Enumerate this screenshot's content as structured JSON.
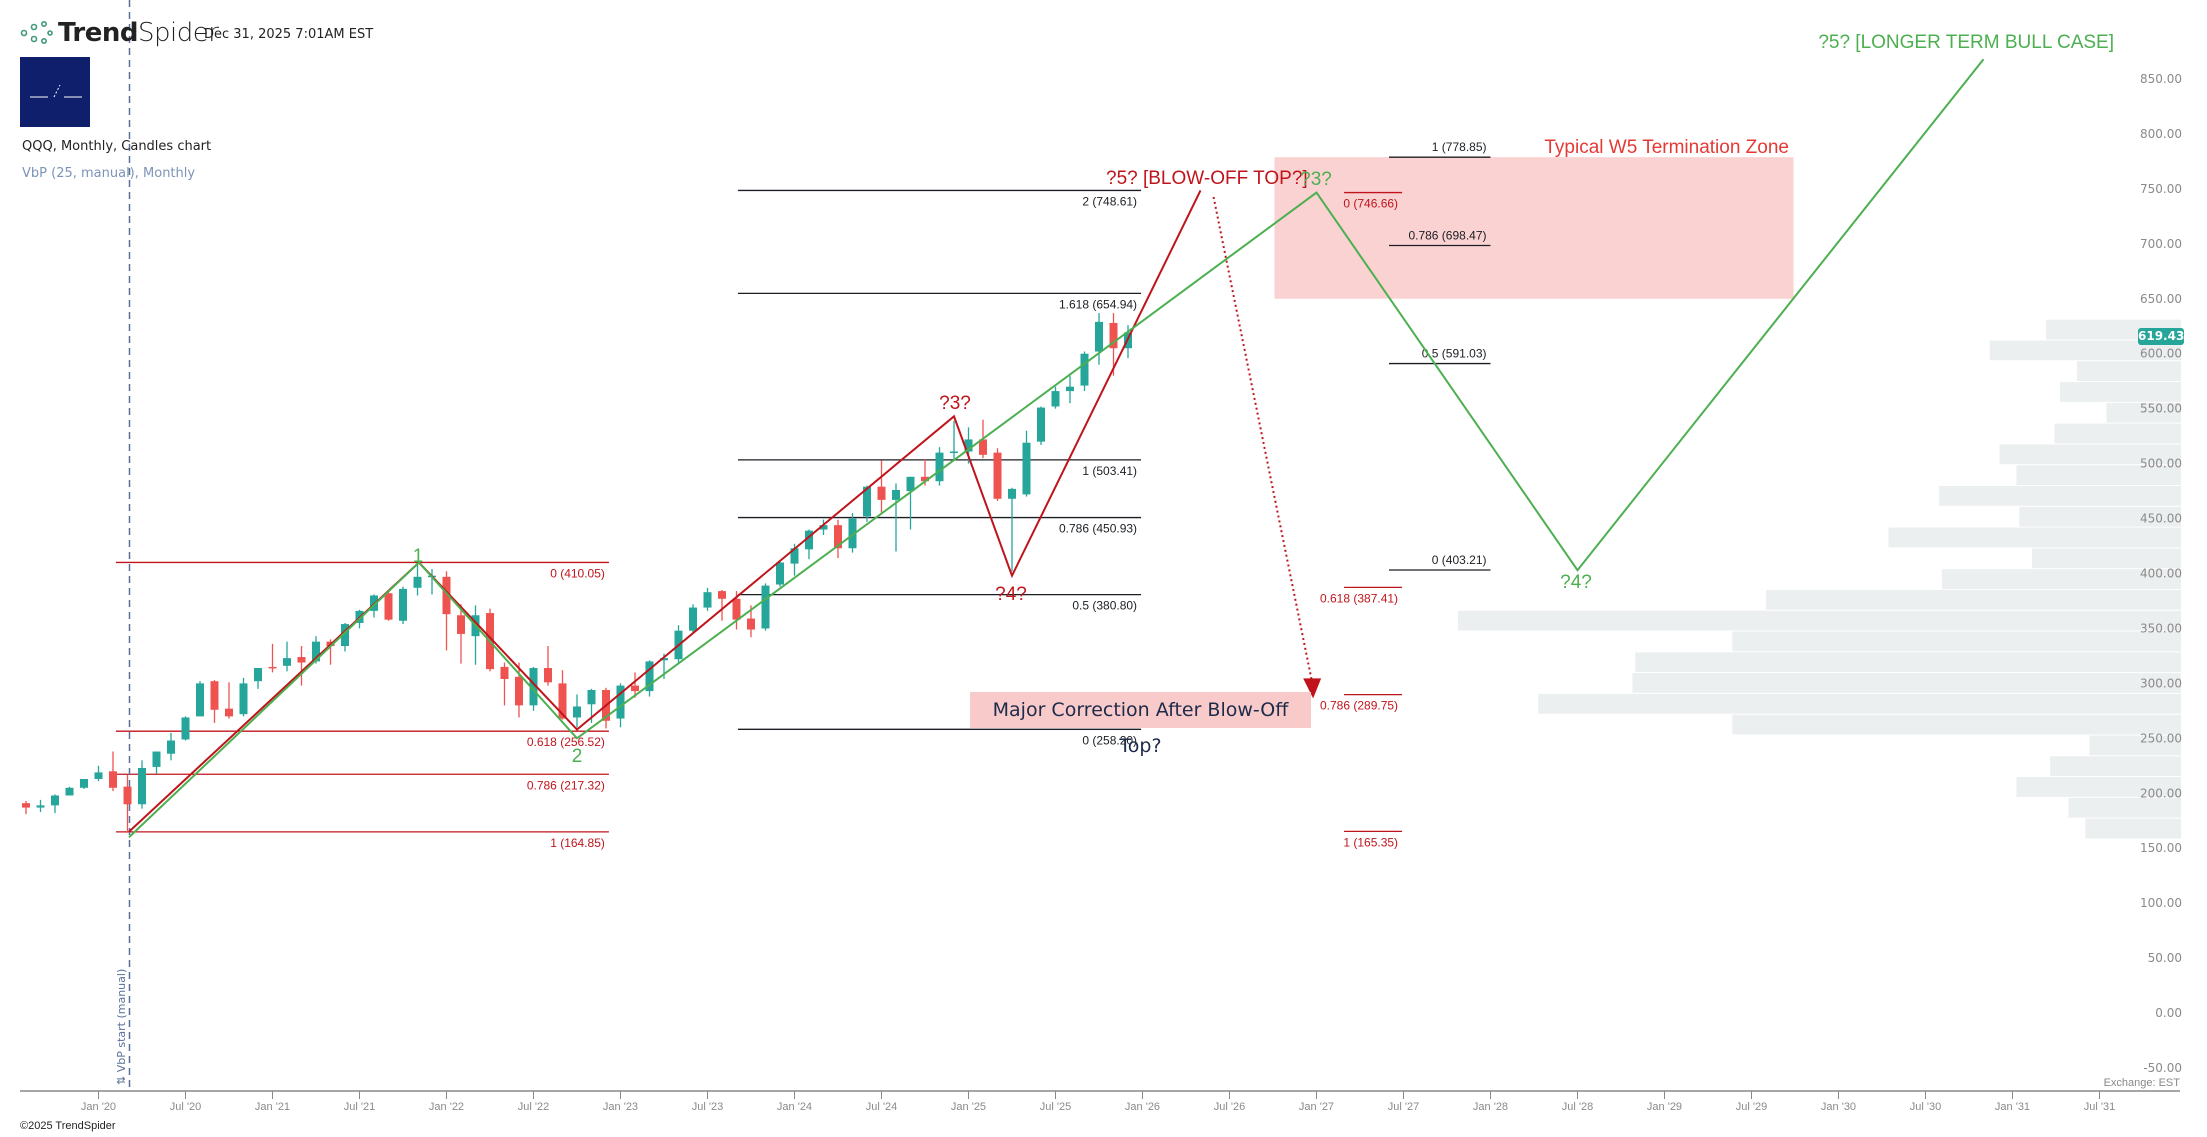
{
  "header": {
    "brand_bold": "Trend",
    "brand_light": "Spider",
    "datetime": "Dec 31, 2025 7:01AM EST",
    "symbol_line": "QQQ, Monthly, Candles chart",
    "indicator_line": "VbP (25, manual), Monthly"
  },
  "footer": {
    "copyright": "©2025 TrendSpider",
    "exchange": "Exchange: EST"
  },
  "last_price": "619.43",
  "vbp_marker_label": "⇅ VbP start (manual)",
  "colors": {
    "up": "#26a69a",
    "down": "#ef5350",
    "red_annot": "#c0141c",
    "green_annot": "#4caf50",
    "zone": "#f9caca",
    "vbp": "#eceff0"
  },
  "annotations": {
    "w1": "1",
    "w2": "2",
    "red_w3": "?3?",
    "red_w4": "?4?",
    "red_w5": "?5? [BLOW-OFF TOP?]",
    "green_w3": "?3?",
    "green_w4": "?4?",
    "green_w5": "?5? [LONGER TERM BULL CASE]",
    "zone_label": "Typical W5 Termination Zone",
    "correction_label": "Major Correction After Blow-Off Top?"
  },
  "chart_data": {
    "type": "candlestick",
    "title": "QQQ, Monthly, Candles chart",
    "ylim": [
      -50,
      850
    ],
    "y_ticks": [
      "850.00",
      "800.00",
      "750.00",
      "700.00",
      "650.00",
      "600.00",
      "550.00",
      "500.00",
      "450.00",
      "400.00",
      "350.00",
      "300.00",
      "250.00",
      "200.00",
      "150.00",
      "100.00",
      "50.00",
      "0.00",
      "-50.00"
    ],
    "x_ticks": [
      "Jan '20",
      "Jul '20",
      "Jan '21",
      "Jul '21",
      "Jan '22",
      "Jul '22",
      "Jan '23",
      "Jul '23",
      "Jan '24",
      "Jul '24",
      "Jan '25",
      "Jul '25",
      "Jan '26",
      "Jul '26",
      "Jan '27",
      "Jul '27",
      "Jan '28",
      "Jul '28",
      "Jan '29",
      "Jul '29",
      "Jan '30",
      "Jul '30",
      "Jan '31",
      "Jul '31"
    ],
    "x_unit": "months since Jan 2020",
    "candles_start": "2019-08",
    "ohlc": [
      [
        191,
        193,
        181,
        187
      ],
      [
        187,
        194,
        183,
        189
      ],
      [
        189,
        199,
        182,
        198
      ],
      [
        198,
        206,
        198,
        205
      ],
      [
        205,
        213,
        204,
        213
      ],
      [
        213,
        225,
        211,
        219
      ],
      [
        220,
        238,
        202,
        205
      ],
      [
        206,
        217,
        164,
        190
      ],
      [
        190,
        230,
        186,
        223
      ],
      [
        224,
        238,
        218,
        238
      ],
      [
        236,
        255,
        230,
        248
      ],
      [
        249,
        270,
        248,
        269
      ],
      [
        270,
        302,
        270,
        300
      ],
      [
        302,
        303,
        264,
        276
      ],
      [
        277,
        301,
        268,
        270
      ],
      [
        272,
        305,
        270,
        300
      ],
      [
        302,
        314,
        295,
        314
      ],
      [
        315,
        336,
        310,
        314
      ],
      [
        316,
        338,
        311,
        323
      ],
      [
        324,
        334,
        298,
        319
      ],
      [
        320,
        343,
        318,
        338
      ],
      [
        338,
        340,
        317,
        334
      ],
      [
        334,
        355,
        329,
        354
      ],
      [
        355,
        367,
        350,
        366
      ],
      [
        366,
        381,
        360,
        380
      ],
      [
        382,
        383,
        357,
        358
      ],
      [
        357,
        388,
        354,
        386
      ],
      [
        387,
        408,
        380,
        397
      ],
      [
        398,
        404,
        381,
        398
      ],
      [
        397,
        402,
        330,
        363
      ],
      [
        362,
        372,
        318,
        345
      ],
      [
        343,
        371,
        317,
        362
      ],
      [
        364,
        368,
        311,
        313
      ],
      [
        315,
        319,
        280,
        304
      ],
      [
        306,
        319,
        269,
        280
      ],
      [
        280,
        315,
        275,
        314
      ],
      [
        314,
        334,
        298,
        301
      ],
      [
        300,
        312,
        267,
        268
      ],
      [
        269,
        290,
        260,
        279
      ],
      [
        281,
        295,
        264,
        294
      ],
      [
        294,
        296,
        259,
        266
      ],
      [
        268,
        300,
        260,
        298
      ],
      [
        298,
        310,
        287,
        293
      ],
      [
        293,
        321,
        288,
        320
      ],
      [
        321,
        327,
        304,
        323
      ],
      [
        322,
        353,
        318,
        348
      ],
      [
        348,
        372,
        346,
        369
      ],
      [
        369,
        387,
        366,
        383
      ],
      [
        384,
        385,
        357,
        377
      ],
      [
        377,
        384,
        349,
        358
      ],
      [
        359,
        371,
        342,
        349
      ],
      [
        350,
        391,
        348,
        389
      ],
      [
        390,
        411,
        388,
        410
      ],
      [
        409,
        427,
        398,
        423
      ],
      [
        422,
        440,
        413,
        439
      ],
      [
        440,
        449,
        435,
        444
      ],
      [
        444,
        449,
        414,
        423
      ],
      [
        423,
        455,
        419,
        450
      ],
      [
        452,
        480,
        447,
        479
      ],
      [
        479,
        503,
        455,
        467
      ],
      [
        467,
        482,
        420,
        476
      ],
      [
        475,
        488,
        440,
        488
      ],
      [
        488,
        504,
        480,
        484
      ],
      [
        484,
        515,
        480,
        510
      ],
      [
        511,
        539,
        503,
        511
      ],
      [
        511,
        533,
        500,
        522
      ],
      [
        522,
        540,
        505,
        508
      ],
      [
        510,
        514,
        466,
        468
      ],
      [
        468,
        478,
        402,
        477
      ],
      [
        472,
        530,
        470,
        519
      ],
      [
        520,
        552,
        517,
        551
      ],
      [
        552,
        570,
        550,
        566
      ],
      [
        566,
        580,
        555,
        570
      ],
      [
        571,
        602,
        566,
        600
      ],
      [
        602,
        637,
        590,
        629
      ],
      [
        628,
        637,
        580,
        605
      ],
      [
        605,
        626,
        596,
        619.43
      ]
    ],
    "fib_sets": [
      {
        "style": "red",
        "from": 1.2,
        "to": 35.2,
        "label_pos": "below",
        "levels": [
          {
            "label": "0 (410.05)",
            "price": 410.05
          },
          {
            "label": "0.618 (256.52)",
            "price": 256.52
          },
          {
            "label": "0.786 (217.32)",
            "price": 217.32
          },
          {
            "label": "1 (164.85)",
            "price": 164.85
          }
        ]
      },
      {
        "style": "dark",
        "from": 44.1,
        "to": 71.9,
        "label_pos": "below",
        "levels": [
          {
            "label": "2 (748.61)",
            "price": 748.61
          },
          {
            "label": "1.618 (654.94)",
            "price": 654.94
          },
          {
            "label": "1 (503.41)",
            "price": 503.41
          },
          {
            "label": "0.786 (450.93)",
            "price": 450.93
          },
          {
            "label": "0.5 (380.80)",
            "price": 380.8
          },
          {
            "label": "0 (258.20)",
            "price": 258.2
          }
        ]
      },
      {
        "style": "red",
        "from": 85.9,
        "to": 89.9,
        "label_pos": "below",
        "levels": [
          {
            "label": "0 (746.66)",
            "price": 746.66
          },
          {
            "label": "0.618 (387.41)",
            "price": 387.41
          },
          {
            "label": "0.786 (289.75)",
            "price": 289.75
          },
          {
            "label": "1 (165.35)",
            "price": 165.35
          }
        ]
      },
      {
        "style": "dark",
        "from": 89,
        "to": 96,
        "label_pos": "above",
        "levels": [
          {
            "label": "1 (778.85)",
            "price": 778.85
          },
          {
            "label": "0.786 (698.47)",
            "price": 698.47
          },
          {
            "label": "0.5 (591.03)",
            "price": 591.03
          },
          {
            "label": "0 (403.21)",
            "price": 403.21
          }
        ]
      }
    ],
    "red_wave_path": [
      [
        2.1,
        165
      ],
      [
        22.1,
        410
      ],
      [
        33,
        258
      ],
      [
        59,
        543
      ],
      [
        63,
        398
      ],
      [
        76,
        748.6
      ]
    ],
    "green_wave_path": [
      [
        2.1,
        160
      ],
      [
        22.1,
        410
      ],
      [
        33,
        250
      ],
      [
        84,
        746.7
      ],
      [
        102,
        403
      ],
      [
        130,
        868
      ]
    ],
    "correction_arrow": [
      [
        76.9,
        742.6
      ],
      [
        83.7,
        290
      ]
    ],
    "termination_zone": {
      "from_month": 81.1,
      "to_month": 116.9,
      "price_top": 778.85,
      "price_bottom": 650
    },
    "vbp": {
      "bins": 25,
      "price_top": 631,
      "price_bottom": 158,
      "relative_volume": [
        96,
        136,
        74,
        86,
        53,
        90,
        129,
        117,
        172,
        115,
        208,
        106,
        170,
        295,
        514,
        319,
        388,
        390,
        457,
        319,
        65,
        93,
        117,
        80,
        68
      ]
    }
  }
}
